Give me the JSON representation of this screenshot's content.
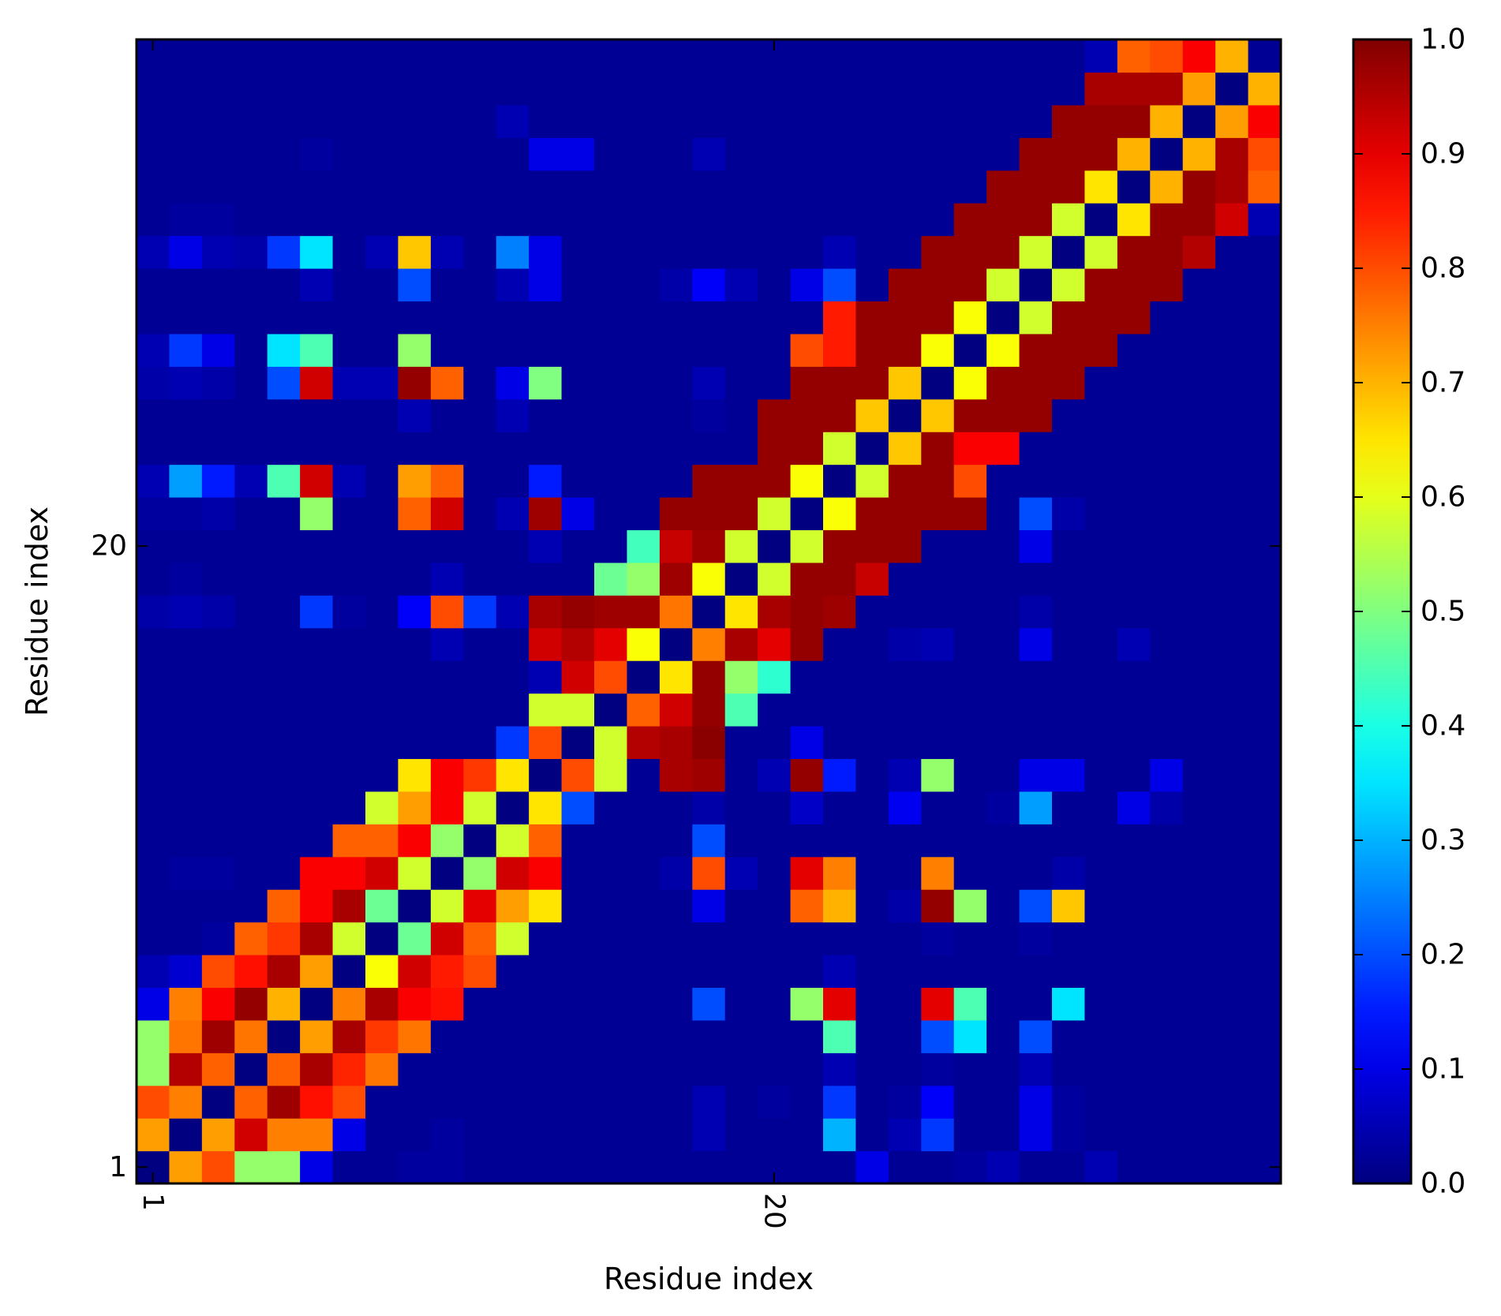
{
  "chart_data": {
    "type": "heatmap",
    "xlabel": "Residue index",
    "ylabel": "Residue index",
    "x_ticks": [
      {
        "value": 1,
        "label": "1"
      },
      {
        "value": 20,
        "label": "20"
      }
    ],
    "y_ticks": [
      {
        "value": 1,
        "label": "1"
      },
      {
        "value": 20,
        "label": "20"
      }
    ],
    "x_tick_rotation": 90,
    "n": 35,
    "colormap": "jet",
    "colorbar": {
      "range": [
        0.0,
        1.0
      ],
      "ticks": [
        "0.0",
        "0.1",
        "0.2",
        "0.3",
        "0.4",
        "0.5",
        "0.6",
        "0.7",
        "0.8",
        "0.9",
        "1.0"
      ],
      "tick_values": [
        0.0,
        0.1,
        0.2,
        0.3,
        0.4,
        0.5,
        0.6,
        0.7,
        0.8,
        0.9,
        1.0
      ],
      "position": "right"
    },
    "rows_note": "rows listed from residue 1 (bottom) to residue 35 (top); columns residue 1 (left) to 35 (right)",
    "matrix": [
      [
        0.0,
        0.72,
        0.8,
        0.52,
        0.52,
        0.1,
        0.02,
        0.02,
        0.03,
        0.03,
        0.02,
        0.02,
        0.02,
        0.02,
        0.02,
        0.02,
        0.02,
        0.02,
        0.02,
        0.02,
        0.02,
        0.02,
        0.1,
        0.02,
        0.02,
        0.03,
        0.05,
        0.02,
        0.02,
        0.05,
        0.02,
        0.02,
        0.02,
        0.02,
        0.02
      ],
      [
        0.72,
        0.0,
        0.72,
        0.92,
        0.75,
        0.75,
        0.1,
        0.02,
        0.02,
        0.03,
        0.02,
        0.02,
        0.02,
        0.02,
        0.02,
        0.02,
        0.02,
        0.05,
        0.02,
        0.02,
        0.02,
        0.3,
        0.02,
        0.05,
        0.18,
        0.02,
        0.02,
        0.1,
        0.03,
        0.02,
        0.02,
        0.02,
        0.02,
        0.02,
        0.02
      ],
      [
        0.8,
        0.75,
        0.0,
        0.78,
        0.97,
        0.86,
        0.8,
        0.02,
        0.02,
        0.02,
        0.02,
        0.02,
        0.02,
        0.02,
        0.02,
        0.02,
        0.02,
        0.05,
        0.02,
        0.03,
        0.02,
        0.18,
        0.02,
        0.03,
        0.12,
        0.02,
        0.02,
        0.1,
        0.03,
        0.02,
        0.02,
        0.02,
        0.02,
        0.02,
        0.02
      ],
      [
        0.52,
        0.95,
        0.78,
        0.0,
        0.78,
        0.96,
        0.84,
        0.76,
        0.02,
        0.02,
        0.02,
        0.02,
        0.02,
        0.02,
        0.02,
        0.02,
        0.02,
        0.02,
        0.02,
        0.02,
        0.02,
        0.05,
        0.02,
        0.02,
        0.03,
        0.02,
        0.02,
        0.05,
        0.02,
        0.02,
        0.02,
        0.02,
        0.02,
        0.02,
        0.02
      ],
      [
        0.52,
        0.76,
        0.97,
        0.76,
        0.0,
        0.72,
        0.96,
        0.82,
        0.76,
        0.02,
        0.02,
        0.02,
        0.02,
        0.02,
        0.02,
        0.02,
        0.02,
        0.02,
        0.02,
        0.02,
        0.02,
        0.45,
        0.02,
        0.02,
        0.2,
        0.35,
        0.02,
        0.2,
        0.02,
        0.02,
        0.02,
        0.02,
        0.02,
        0.02,
        0.02
      ],
      [
        0.1,
        0.75,
        0.88,
        0.98,
        0.7,
        0.0,
        0.75,
        0.96,
        0.88,
        0.86,
        0.02,
        0.02,
        0.02,
        0.02,
        0.02,
        0.02,
        0.02,
        0.2,
        0.02,
        0.02,
        0.52,
        0.9,
        0.02,
        0.02,
        0.9,
        0.45,
        0.02,
        0.02,
        0.35,
        0.02,
        0.02,
        0.02,
        0.02,
        0.02,
        0.02
      ],
      [
        0.05,
        0.08,
        0.8,
        0.86,
        0.96,
        0.72,
        0.0,
        0.62,
        0.92,
        0.85,
        0.8,
        0.02,
        0.02,
        0.02,
        0.02,
        0.02,
        0.02,
        0.02,
        0.02,
        0.02,
        0.02,
        0.05,
        0.02,
        0.02,
        0.02,
        0.02,
        0.02,
        0.02,
        0.02,
        0.02,
        0.02,
        0.02,
        0.02,
        0.02,
        0.02
      ],
      [
        0.02,
        0.02,
        0.03,
        0.78,
        0.82,
        0.96,
        0.58,
        0.0,
        0.48,
        0.92,
        0.78,
        0.58,
        0.02,
        0.02,
        0.02,
        0.02,
        0.02,
        0.02,
        0.02,
        0.02,
        0.02,
        0.02,
        0.02,
        0.02,
        0.03,
        0.02,
        0.02,
        0.03,
        0.02,
        0.02,
        0.02,
        0.02,
        0.02,
        0.02,
        0.02
      ],
      [
        0.02,
        0.02,
        0.02,
        0.02,
        0.78,
        0.88,
        0.96,
        0.48,
        0.0,
        0.58,
        0.9,
        0.72,
        0.65,
        0.02,
        0.02,
        0.02,
        0.02,
        0.1,
        0.02,
        0.02,
        0.78,
        0.7,
        0.02,
        0.04,
        0.98,
        0.52,
        0.02,
        0.2,
        0.68,
        0.02,
        0.02,
        0.02,
        0.02,
        0.02,
        0.02
      ],
      [
        0.02,
        0.03,
        0.03,
        0.02,
        0.02,
        0.88,
        0.88,
        0.92,
        0.58,
        0.0,
        0.52,
        0.92,
        0.88,
        0.02,
        0.02,
        0.02,
        0.04,
        0.8,
        0.05,
        0.02,
        0.9,
        0.75,
        0.02,
        0.02,
        0.75,
        0.02,
        0.02,
        0.02,
        0.04,
        0.02,
        0.02,
        0.02,
        0.02,
        0.02,
        0.02
      ],
      [
        0.02,
        0.02,
        0.02,
        0.02,
        0.02,
        0.02,
        0.78,
        0.78,
        0.88,
        0.52,
        0.0,
        0.58,
        0.78,
        0.02,
        0.02,
        0.02,
        0.02,
        0.2,
        0.02,
        0.02,
        0.02,
        0.02,
        0.02,
        0.02,
        0.02,
        0.02,
        0.02,
        0.02,
        0.02,
        0.02,
        0.02,
        0.02,
        0.02,
        0.02,
        0.02
      ],
      [
        0.02,
        0.02,
        0.02,
        0.02,
        0.02,
        0.02,
        0.02,
        0.58,
        0.72,
        0.88,
        0.58,
        0.0,
        0.65,
        0.2,
        0.02,
        0.02,
        0.02,
        0.04,
        0.02,
        0.02,
        0.07,
        0.02,
        0.02,
        0.11,
        0.02,
        0.02,
        0.03,
        0.28,
        0.02,
        0.02,
        0.1,
        0.04,
        0.02,
        0.02,
        0.02
      ],
      [
        0.02,
        0.02,
        0.02,
        0.02,
        0.02,
        0.02,
        0.02,
        0.02,
        0.65,
        0.88,
        0.82,
        0.65,
        0.0,
        0.8,
        0.58,
        0.02,
        0.96,
        0.97,
        0.02,
        0.05,
        0.98,
        0.15,
        0.02,
        0.05,
        0.52,
        0.02,
        0.02,
        0.1,
        0.1,
        0.02,
        0.02,
        0.1,
        0.02,
        0.02,
        0.02
      ],
      [
        0.02,
        0.02,
        0.02,
        0.02,
        0.02,
        0.02,
        0.02,
        0.02,
        0.02,
        0.02,
        0.02,
        0.18,
        0.8,
        0.0,
        0.58,
        0.95,
        0.96,
        0.99,
        0.02,
        0.02,
        0.1,
        0.02,
        0.02,
        0.02,
        0.02,
        0.02,
        0.02,
        0.02,
        0.02,
        0.02,
        0.02,
        0.02,
        0.02,
        0.02,
        0.02
      ],
      [
        0.02,
        0.02,
        0.02,
        0.02,
        0.02,
        0.02,
        0.02,
        0.02,
        0.02,
        0.02,
        0.02,
        0.02,
        0.58,
        0.58,
        0.0,
        0.78,
        0.92,
        0.98,
        0.45,
        0.02,
        0.02,
        0.02,
        0.02,
        0.02,
        0.02,
        0.02,
        0.02,
        0.02,
        0.02,
        0.02,
        0.02,
        0.02,
        0.02,
        0.02,
        0.02
      ],
      [
        0.02,
        0.02,
        0.02,
        0.02,
        0.02,
        0.02,
        0.02,
        0.02,
        0.02,
        0.02,
        0.02,
        0.02,
        0.05,
        0.92,
        0.8,
        0.0,
        0.65,
        0.98,
        0.52,
        0.42,
        0.02,
        0.02,
        0.02,
        0.02,
        0.02,
        0.02,
        0.02,
        0.02,
        0.02,
        0.02,
        0.02,
        0.02,
        0.02,
        0.02,
        0.02
      ],
      [
        0.02,
        0.02,
        0.02,
        0.02,
        0.02,
        0.02,
        0.02,
        0.02,
        0.02,
        0.05,
        0.02,
        0.02,
        0.92,
        0.95,
        0.9,
        0.62,
        0.0,
        0.75,
        0.96,
        0.9,
        0.98,
        0.02,
        0.02,
        0.04,
        0.05,
        0.02,
        0.02,
        0.1,
        0.02,
        0.02,
        0.05,
        0.02,
        0.02,
        0.02,
        0.02
      ],
      [
        0.04,
        0.05,
        0.04,
        0.02,
        0.02,
        0.18,
        0.03,
        0.02,
        0.12,
        0.8,
        0.18,
        0.05,
        0.96,
        0.98,
        0.97,
        0.97,
        0.76,
        0.0,
        0.65,
        0.96,
        0.98,
        0.97,
        0.02,
        0.02,
        0.02,
        0.02,
        0.02,
        0.04,
        0.02,
        0.02,
        0.02,
        0.02,
        0.02,
        0.02,
        0.02
      ],
      [
        0.02,
        0.03,
        0.02,
        0.02,
        0.02,
        0.02,
        0.02,
        0.02,
        0.02,
        0.05,
        0.02,
        0.02,
        0.02,
        0.02,
        0.48,
        0.52,
        0.97,
        0.62,
        0.0,
        0.58,
        0.98,
        0.98,
        0.93,
        0.02,
        0.02,
        0.02,
        0.02,
        0.02,
        0.02,
        0.02,
        0.02,
        0.02,
        0.02,
        0.02,
        0.02
      ],
      [
        0.02,
        0.02,
        0.02,
        0.02,
        0.02,
        0.02,
        0.02,
        0.02,
        0.02,
        0.02,
        0.02,
        0.02,
        0.05,
        0.02,
        0.02,
        0.44,
        0.93,
        0.97,
        0.58,
        0.0,
        0.58,
        0.98,
        0.98,
        0.98,
        0.02,
        0.02,
        0.02,
        0.1,
        0.02,
        0.02,
        0.02,
        0.02,
        0.02,
        0.02,
        0.02
      ],
      [
        0.03,
        0.03,
        0.04,
        0.02,
        0.02,
        0.52,
        0.02,
        0.02,
        0.78,
        0.92,
        0.02,
        0.05,
        0.97,
        0.1,
        0.02,
        0.02,
        0.98,
        0.98,
        0.98,
        0.58,
        0.0,
        0.62,
        0.98,
        0.98,
        0.98,
        0.98,
        0.02,
        0.2,
        0.04,
        0.02,
        0.02,
        0.02,
        0.02,
        0.02,
        0.02
      ],
      [
        0.05,
        0.28,
        0.15,
        0.05,
        0.45,
        0.92,
        0.05,
        0.02,
        0.72,
        0.78,
        0.02,
        0.02,
        0.15,
        0.02,
        0.02,
        0.02,
        0.02,
        0.98,
        0.98,
        0.98,
        0.62,
        0.0,
        0.58,
        0.98,
        0.98,
        0.8,
        0.02,
        0.02,
        0.02,
        0.02,
        0.02,
        0.02,
        0.02,
        0.02,
        0.02
      ],
      [
        0.02,
        0.02,
        0.02,
        0.02,
        0.02,
        0.02,
        0.02,
        0.02,
        0.02,
        0.02,
        0.02,
        0.02,
        0.02,
        0.02,
        0.02,
        0.02,
        0.02,
        0.02,
        0.02,
        0.98,
        0.98,
        0.58,
        0.0,
        0.68,
        0.98,
        0.88,
        0.88,
        0.02,
        0.02,
        0.02,
        0.02,
        0.02,
        0.02,
        0.02,
        0.02
      ],
      [
        0.02,
        0.02,
        0.02,
        0.02,
        0.02,
        0.02,
        0.02,
        0.02,
        0.05,
        0.02,
        0.02,
        0.05,
        0.02,
        0.02,
        0.02,
        0.02,
        0.02,
        0.03,
        0.02,
        0.98,
        0.98,
        0.98,
        0.68,
        0.0,
        0.68,
        0.98,
        0.98,
        0.98,
        0.02,
        0.02,
        0.02,
        0.02,
        0.02,
        0.02,
        0.02
      ],
      [
        0.04,
        0.05,
        0.04,
        0.02,
        0.2,
        0.92,
        0.05,
        0.05,
        0.98,
        0.78,
        0.02,
        0.1,
        0.5,
        0.02,
        0.02,
        0.02,
        0.02,
        0.05,
        0.02,
        0.02,
        0.98,
        0.98,
        0.98,
        0.68,
        0.0,
        0.62,
        0.98,
        0.98,
        0.98,
        0.02,
        0.02,
        0.02,
        0.02,
        0.02,
        0.02
      ],
      [
        0.05,
        0.18,
        0.1,
        0.02,
        0.35,
        0.45,
        0.02,
        0.02,
        0.52,
        0.02,
        0.02,
        0.02,
        0.02,
        0.02,
        0.02,
        0.02,
        0.02,
        0.02,
        0.02,
        0.02,
        0.8,
        0.85,
        0.98,
        0.98,
        0.62,
        0.0,
        0.62,
        0.98,
        0.98,
        0.98,
        0.02,
        0.02,
        0.02,
        0.02,
        0.02
      ],
      [
        0.02,
        0.02,
        0.02,
        0.02,
        0.02,
        0.02,
        0.02,
        0.02,
        0.02,
        0.02,
        0.02,
        0.02,
        0.02,
        0.02,
        0.02,
        0.02,
        0.02,
        0.02,
        0.02,
        0.02,
        0.02,
        0.85,
        0.98,
        0.98,
        0.98,
        0.62,
        0.0,
        0.58,
        0.98,
        0.98,
        0.98,
        0.02,
        0.02,
        0.02,
        0.02
      ],
      [
        0.02,
        0.02,
        0.02,
        0.02,
        0.02,
        0.05,
        0.02,
        0.02,
        0.2,
        0.02,
        0.02,
        0.05,
        0.1,
        0.02,
        0.02,
        0.02,
        0.04,
        0.12,
        0.05,
        0.02,
        0.1,
        0.2,
        0.02,
        0.98,
        0.98,
        0.98,
        0.58,
        0.0,
        0.58,
        0.98,
        0.98,
        0.98,
        0.02,
        0.02,
        0.02
      ],
      [
        0.05,
        0.1,
        0.05,
        0.04,
        0.18,
        0.35,
        0.02,
        0.05,
        0.68,
        0.05,
        0.02,
        0.25,
        0.1,
        0.02,
        0.02,
        0.02,
        0.02,
        0.02,
        0.02,
        0.02,
        0.02,
        0.05,
        0.02,
        0.02,
        0.98,
        0.98,
        0.98,
        0.58,
        0.0,
        0.58,
        0.98,
        0.98,
        0.95,
        0.02,
        0.02
      ],
      [
        0.02,
        0.03,
        0.03,
        0.02,
        0.02,
        0.02,
        0.02,
        0.02,
        0.02,
        0.02,
        0.02,
        0.02,
        0.02,
        0.02,
        0.02,
        0.02,
        0.02,
        0.02,
        0.02,
        0.02,
        0.02,
        0.02,
        0.02,
        0.02,
        0.02,
        0.98,
        0.98,
        0.98,
        0.58,
        0.0,
        0.65,
        0.98,
        0.98,
        0.92,
        0.05
      ],
      [
        0.02,
        0.02,
        0.02,
        0.02,
        0.02,
        0.02,
        0.02,
        0.02,
        0.02,
        0.02,
        0.02,
        0.02,
        0.02,
        0.02,
        0.02,
        0.02,
        0.02,
        0.02,
        0.02,
        0.02,
        0.02,
        0.02,
        0.02,
        0.02,
        0.02,
        0.02,
        0.98,
        0.98,
        0.98,
        0.65,
        0.0,
        0.7,
        0.98,
        0.96,
        0.78
      ],
      [
        0.02,
        0.02,
        0.02,
        0.02,
        0.02,
        0.03,
        0.02,
        0.02,
        0.02,
        0.02,
        0.02,
        0.02,
        0.1,
        0.1,
        0.02,
        0.02,
        0.02,
        0.05,
        0.02,
        0.02,
        0.02,
        0.02,
        0.02,
        0.02,
        0.02,
        0.02,
        0.02,
        0.98,
        0.98,
        0.98,
        0.7,
        0.0,
        0.7,
        0.96,
        0.8
      ],
      [
        0.02,
        0.02,
        0.02,
        0.02,
        0.02,
        0.02,
        0.02,
        0.02,
        0.02,
        0.02,
        0.02,
        0.05,
        0.02,
        0.02,
        0.02,
        0.02,
        0.02,
        0.02,
        0.02,
        0.02,
        0.02,
        0.02,
        0.02,
        0.02,
        0.02,
        0.02,
        0.02,
        0.02,
        0.98,
        0.98,
        0.98,
        0.7,
        0.0,
        0.72,
        0.88
      ],
      [
        0.02,
        0.02,
        0.02,
        0.02,
        0.02,
        0.02,
        0.02,
        0.02,
        0.02,
        0.02,
        0.02,
        0.02,
        0.02,
        0.02,
        0.02,
        0.02,
        0.02,
        0.02,
        0.02,
        0.02,
        0.02,
        0.02,
        0.02,
        0.02,
        0.02,
        0.02,
        0.02,
        0.02,
        0.02,
        0.96,
        0.96,
        0.96,
        0.72,
        0.0,
        0.7
      ],
      [
        0.02,
        0.02,
        0.02,
        0.02,
        0.02,
        0.02,
        0.02,
        0.02,
        0.02,
        0.02,
        0.02,
        0.02,
        0.02,
        0.02,
        0.02,
        0.02,
        0.02,
        0.02,
        0.02,
        0.02,
        0.02,
        0.02,
        0.02,
        0.02,
        0.02,
        0.02,
        0.02,
        0.02,
        0.02,
        0.05,
        0.78,
        0.8,
        0.88,
        0.7,
        0.02
      ]
    ]
  }
}
